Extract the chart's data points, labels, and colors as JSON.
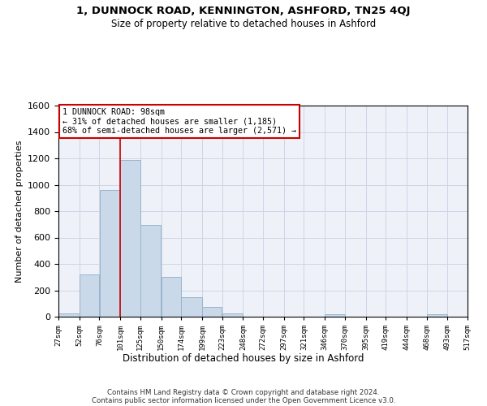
{
  "title": "1, DUNNOCK ROAD, KENNINGTON, ASHFORD, TN25 4QJ",
  "subtitle": "Size of property relative to detached houses in Ashford",
  "xlabel": "Distribution of detached houses by size in Ashford",
  "ylabel": "Number of detached properties",
  "footer1": "Contains HM Land Registry data © Crown copyright and database right 2024.",
  "footer2": "Contains public sector information licensed under the Open Government Licence v3.0.",
  "annotation_line1": "1 DUNNOCK ROAD: 98sqm",
  "annotation_line2": "← 31% of detached houses are smaller (1,185)",
  "annotation_line3": "68% of semi-detached houses are larger (2,571) →",
  "bar_color": "#c9d9ea",
  "bar_edge_color": "#9ab4cc",
  "marker_color": "#cc0000",
  "marker_x": 101,
  "bin_edges": [
    27,
    52,
    76,
    101,
    125,
    150,
    174,
    199,
    223,
    248,
    272,
    297,
    321,
    346,
    370,
    395,
    419,
    444,
    468,
    493,
    517
  ],
  "bar_heights": [
    25,
    320,
    960,
    1185,
    695,
    300,
    150,
    75,
    25,
    0,
    0,
    0,
    0,
    20,
    0,
    0,
    0,
    0,
    20,
    0
  ],
  "xlim_left": 27,
  "xlim_right": 517,
  "ylim_top": 1600,
  "yticks": [
    0,
    200,
    400,
    600,
    800,
    1000,
    1200,
    1400,
    1600
  ],
  "grid_color": "#ccd6e6",
  "bg_color": "#eef2f8",
  "tick_labels": [
    "27sqm",
    "52sqm",
    "76sqm",
    "101sqm",
    "125sqm",
    "150sqm",
    "174sqm",
    "199sqm",
    "223sqm",
    "248sqm",
    "272sqm",
    "297sqm",
    "321sqm",
    "346sqm",
    "370sqm",
    "395sqm",
    "419sqm",
    "444sqm",
    "468sqm",
    "493sqm",
    "517sqm"
  ]
}
